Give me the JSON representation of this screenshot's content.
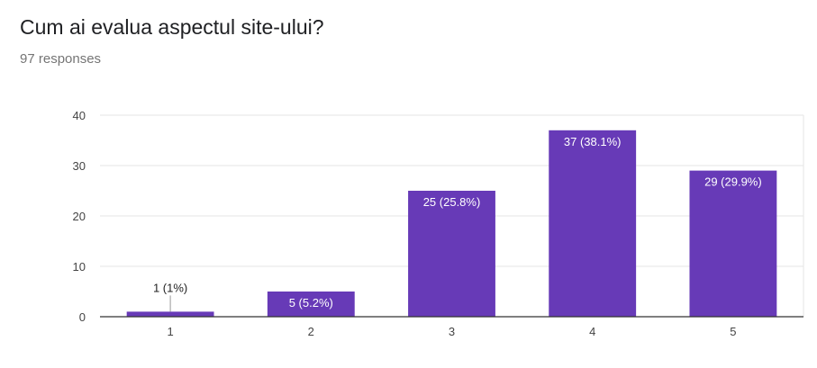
{
  "question": {
    "title": "Cum ai evalua aspectul site-ului?",
    "responses": "97 responses"
  },
  "chart_data": {
    "type": "bar",
    "categories": [
      "1",
      "2",
      "3",
      "4",
      "5"
    ],
    "values": [
      1,
      5,
      25,
      37,
      29
    ],
    "data_labels": [
      "1 (1%)",
      "5 (5.2%)",
      "25 (25.8%)",
      "37 (38.1%)",
      "29 (29.9%)"
    ],
    "ylim": [
      0,
      40
    ],
    "yticks": [
      0,
      10,
      20,
      30,
      40
    ],
    "grid": true,
    "legend": "none",
    "bar_color": "#673ab7",
    "title": "",
    "xlabel": "",
    "ylabel": ""
  }
}
